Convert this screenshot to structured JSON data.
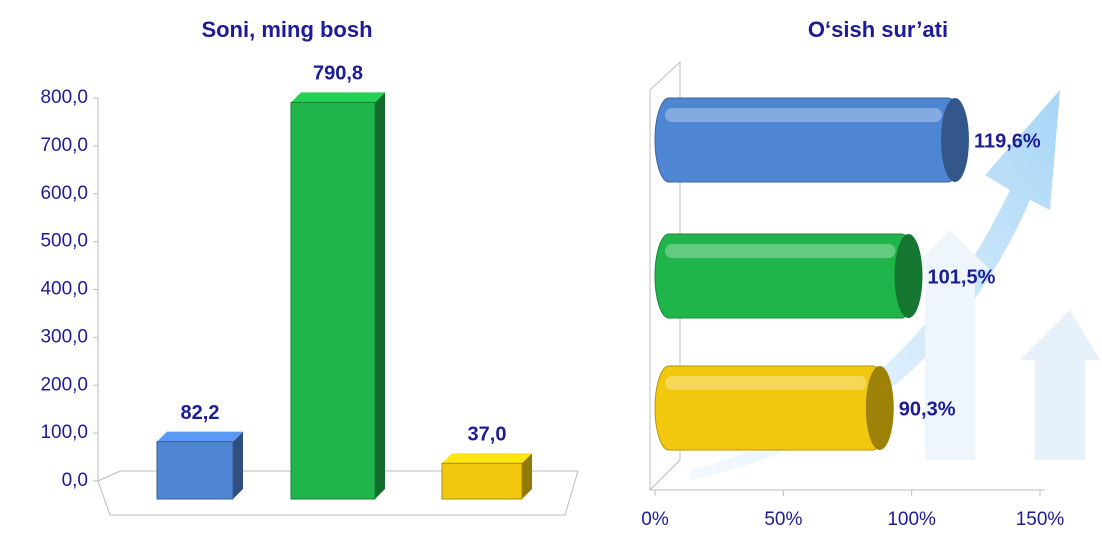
{
  "chart_data": [
    {
      "type": "bar",
      "title": "Soni, ming bosh",
      "categories": [
        null,
        null,
        null
      ],
      "values": [
        82.2,
        790.8,
        37.0
      ],
      "value_labels": [
        "82,2",
        "790,8",
        "37,0"
      ],
      "colors": [
        "#4f86d4",
        "#1fb54a",
        "#f2c80f"
      ],
      "ylim": [
        0,
        800
      ],
      "yticks": [
        {
          "value": 0,
          "label": "0,0"
        },
        {
          "value": 100,
          "label": "100,0"
        },
        {
          "value": 200,
          "label": "200,0"
        },
        {
          "value": 300,
          "label": "300,0"
        },
        {
          "value": 400,
          "label": "400,0"
        },
        {
          "value": 500,
          "label": "500,0"
        },
        {
          "value": 600,
          "label": "600,0"
        },
        {
          "value": 700,
          "label": "700,0"
        },
        {
          "value": 800,
          "label": "800,0"
        }
      ]
    },
    {
      "type": "barh",
      "title": "O‘sish sur’ati",
      "categories": [
        null,
        null,
        null
      ],
      "values": [
        119.6,
        101.5,
        90.3
      ],
      "value_labels": [
        "119,6%",
        "101,5%",
        "90,3%"
      ],
      "colors": [
        "#4f86d4",
        "#1fb54a",
        "#f2c80f"
      ],
      "xlim": [
        0,
        150
      ],
      "xticks": [
        {
          "value": 0,
          "label": "0%"
        },
        {
          "value": 50,
          "label": "50%"
        },
        {
          "value": 100,
          "label": "100%"
        },
        {
          "value": 150,
          "label": "150%"
        }
      ]
    }
  ]
}
